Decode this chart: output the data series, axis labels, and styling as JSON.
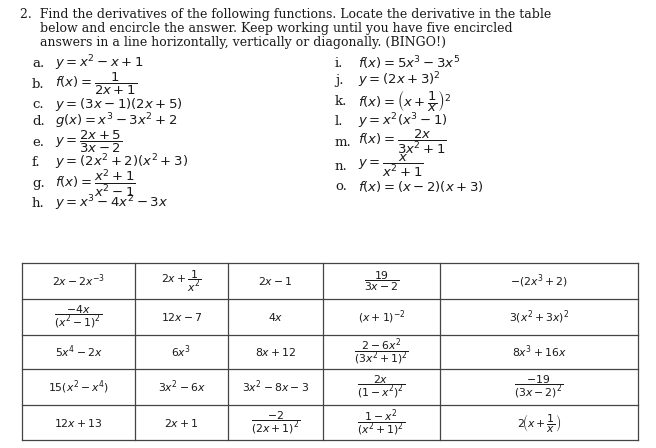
{
  "title_lines": [
    "2.  Find the derivatives of the following functions. Locate the derivative in the table",
    "     below and encircle the answer. Keep working until you have five encircled",
    "     answers in a line horizontally, vertically or diagonally. (BINGO!)"
  ],
  "left_funcs": [
    [
      "a.",
      "$y = x^2 - x + 1$",
      0
    ],
    [
      "b.",
      "$f(x) = \\dfrac{1}{2x+1}$",
      1
    ],
    [
      "c.",
      "$y = (3x-1)(2x+5)$",
      0
    ],
    [
      "d.",
      "$g(x) = x^3 - 3x^2 + 2$",
      0
    ],
    [
      "e.",
      "$y = \\dfrac{2x+5}{3x-2}$",
      1
    ],
    [
      "f.",
      "$y = (2x^2+2)(x^2+3)$",
      0
    ],
    [
      "g.",
      "$f(x) = \\dfrac{x^2+1}{x^2-1}$",
      1
    ],
    [
      "h.",
      "$y = x^3 - 4x^2 - 3x$",
      0
    ]
  ],
  "right_funcs": [
    [
      "i.",
      "$f(x) = 5x^3 - 3x^5$",
      0
    ],
    [
      "j.",
      "$y = (2x+3)^2$",
      0
    ],
    [
      "k.",
      "$f(x) = \\left(x + \\dfrac{1}{x}\\right)^2$",
      1
    ],
    [
      "l.",
      "$y = x^2(x^3-1)$",
      0
    ],
    [
      "m.",
      "$f(x) = \\dfrac{2x}{3x^2+1}$",
      1
    ],
    [
      "n.",
      "$y = \\dfrac{x}{x^2+1}$",
      1
    ],
    [
      "o.",
      "$f(x) = (x-2)(x+3)$",
      0
    ]
  ],
  "table_cells": [
    [
      "$2x - 2x^{-3}$",
      "$2x + \\dfrac{1}{x^2}$",
      "$2x-1$",
      "$\\dfrac{19}{3x-2}$",
      "$-(2x^3+2)$"
    ],
    [
      "$\\dfrac{-4x}{(x^2-1)^2}$",
      "$12x-7$",
      "$4x$",
      "$(x+1)^{-2}$",
      "$3(x^2+3x)^2$"
    ],
    [
      "$5x^4-2x$",
      "$6x^3$",
      "$8x+12$",
      "$\\dfrac{2-6x^2}{(3x^2+1)^2}$",
      "$8x^3+16x$"
    ],
    [
      "$15(x^2-x^4)$",
      "$3x^2-6x$",
      "$3x^2-8x-3$",
      "$\\dfrac{2x}{(1-x^2)^2}$",
      "$\\dfrac{-19}{(3x-2)^2}$"
    ],
    [
      "$12x+13$",
      "$2x+1$",
      "$\\dfrac{-2}{(2x+1)^2}$",
      "$\\dfrac{1-x^2}{(x^2+1)^2}$",
      "$2\\!\\left(x+\\dfrac{1}{x}\\right)$"
    ]
  ],
  "bg_color": "#ffffff",
  "text_color": "#1a1a1a",
  "border_color": "#444444"
}
